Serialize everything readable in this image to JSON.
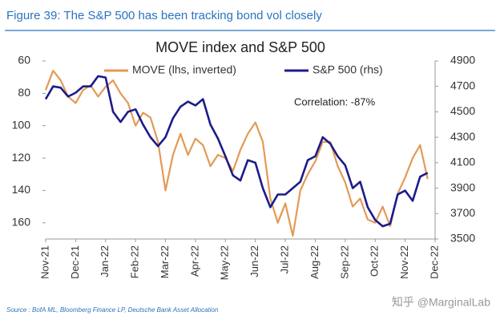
{
  "header": {
    "figure_title": "Figure 39: The S&P 500 has been tracking bond vol closely"
  },
  "chart_data": {
    "type": "line",
    "title": "MOVE index and S&P 500",
    "x": [
      0,
      0.25,
      0.5,
      0.75,
      1,
      1.25,
      1.5,
      1.75,
      2,
      2.25,
      2.5,
      2.75,
      3,
      3.25,
      3.5,
      3.75,
      4,
      4.25,
      4.5,
      4.75,
      5,
      5.25,
      5.5,
      5.75,
      6,
      6.25,
      6.5,
      6.75,
      7,
      7.25,
      7.5,
      7.75,
      8,
      8.25,
      8.5,
      8.75,
      9,
      9.25,
      9.5,
      9.75,
      10,
      10.25,
      10.5,
      10.75,
      11,
      11.25,
      11.5,
      11.75,
      12,
      12.25,
      12.5,
      12.75
    ],
    "series": [
      {
        "name": "MOVE (lhs, inverted)",
        "color": "#e39a55",
        "axis": "y",
        "values": [
          78,
          66,
          72,
          82,
          86,
          78,
          75,
          82,
          76,
          72,
          80,
          86,
          100,
          92,
          95,
          110,
          140,
          118,
          105,
          118,
          108,
          112,
          125,
          118,
          120,
          128,
          115,
          105,
          98,
          110,
          145,
          160,
          148,
          168,
          140,
          130,
          122,
          110,
          110,
          125,
          135,
          150,
          145,
          158,
          160,
          150,
          162,
          142,
          132,
          120,
          112,
          133
        ]
      },
      {
        "name": "S&P 500 (rhs)",
        "color": "#1c1c8a",
        "axis": "y2",
        "values": [
          4600,
          4700,
          4690,
          4620,
          4650,
          4700,
          4700,
          4780,
          4770,
          4500,
          4420,
          4500,
          4520,
          4400,
          4300,
          4230,
          4300,
          4450,
          4540,
          4580,
          4550,
          4600,
          4400,
          4290,
          4150,
          4000,
          3960,
          4120,
          4100,
          3900,
          3750,
          3850,
          3850,
          3900,
          3950,
          4120,
          4150,
          4300,
          4250,
          4150,
          4080,
          3900,
          3950,
          3750,
          3650,
          3600,
          3620,
          3850,
          3880,
          3800,
          3990,
          4020
        ]
      }
    ],
    "xlim": [
      0,
      13
    ],
    "xticks": [
      {
        "value": 0,
        "label": "Nov-21"
      },
      {
        "value": 1,
        "label": "Dec-21"
      },
      {
        "value": 2,
        "label": "Jan-22"
      },
      {
        "value": 3,
        "label": "Feb-22"
      },
      {
        "value": 4,
        "label": "Mar-22"
      },
      {
        "value": 5,
        "label": "Apr-22"
      },
      {
        "value": 6,
        "label": "May-22"
      },
      {
        "value": 7,
        "label": "Jun-22"
      },
      {
        "value": 8,
        "label": "Jul-22"
      },
      {
        "value": 9,
        "label": "Aug-22"
      },
      {
        "value": 10,
        "label": "Sep-22"
      },
      {
        "value": 11,
        "label": "Oct-22"
      },
      {
        "value": 12,
        "label": "Nov-22"
      },
      {
        "value": 13,
        "label": "Dec-22"
      }
    ],
    "ylim": [
      60,
      170
    ],
    "y_inverted": true,
    "yticks": [
      60,
      80,
      100,
      120,
      140,
      160
    ],
    "y2lim": [
      3500,
      4900
    ],
    "y2ticks": [
      3500,
      3700,
      3900,
      4100,
      4300,
      4500,
      4700,
      4900
    ],
    "annotation": "Correlation: -87%",
    "legend": "top"
  },
  "footer": {
    "source": "Source : BofA ML, Bloomberg Finance LP, Deutsche Bank Asset Allocation",
    "watermark": "知乎 @MarginalLab"
  }
}
